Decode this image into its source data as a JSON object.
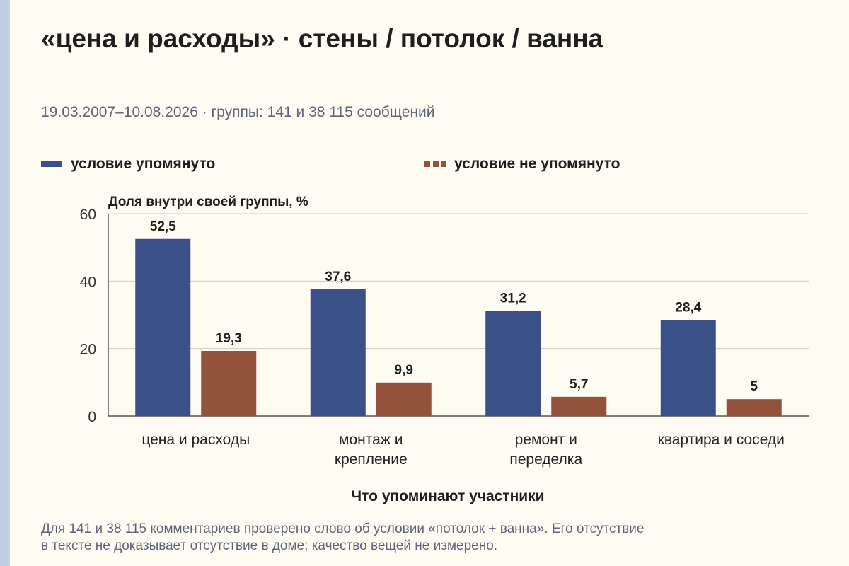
{
  "title": "«цена и расходы» · стены / потолок / ванна",
  "subtitle": "19.03.2007–10.08.2026 · группы: 141 и 38 115 сообщений",
  "legend": [
    {
      "label": "условие упомянуто",
      "color": "#3b5088"
    },
    {
      "label": "условие не упомянуто",
      "color": "#93523a"
    }
  ],
  "footnote": {
    "line1": "Для 141 и 38 115 комментариев проверено слово об условии «потолок + ванна». Его отсутствие",
    "line2": "в тексте не доказывает отсутствие в доме; качество вещей не измерено."
  },
  "chart_data": {
    "type": "bar",
    "ylabel": "Доля внутри своей группы, %",
    "xlabel": "Что упоминают участники",
    "ylim": [
      0,
      60
    ],
    "yticks": [
      0,
      20,
      40,
      60
    ],
    "grid": true,
    "categories": [
      [
        "цена и расходы"
      ],
      [
        "монтаж и",
        "крепление"
      ],
      [
        "ремонт и",
        "переделка"
      ],
      [
        "квартира и соседи"
      ]
    ],
    "series": [
      {
        "name": "условие упомянуто",
        "color": "#3b5088",
        "values": [
          52.5,
          37.6,
          31.2,
          28.4
        ],
        "labels": [
          "52,5",
          "37,6",
          "31,2",
          "28,4"
        ]
      },
      {
        "name": "условие не упомянуто",
        "color": "#93523a",
        "values": [
          19.3,
          9.9,
          5.7,
          5
        ],
        "labels": [
          "19,3",
          "9,9",
          "5,7",
          "5"
        ]
      }
    ]
  }
}
